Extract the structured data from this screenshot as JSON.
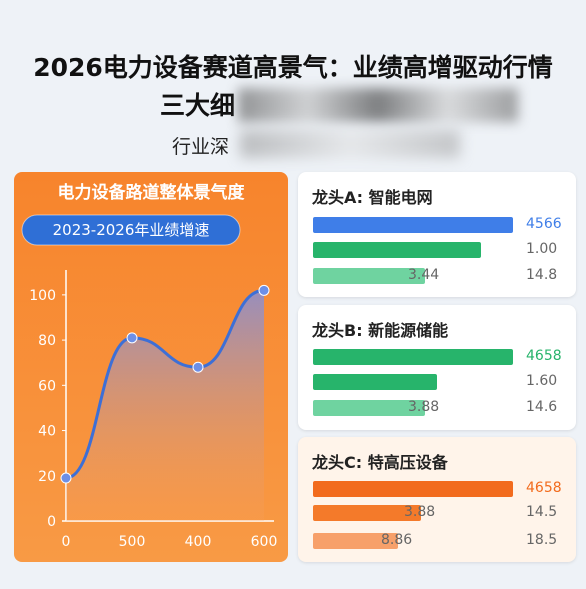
{
  "title": "2026电力设备赛道高景气：业绩高增驱动行情",
  "title_line2": "三大细",
  "subtitle": "行业深",
  "chart_data": {
    "type": "line",
    "title": "电力设备路道整体景气度",
    "subtitle": "2023-2026年业绩增速",
    "categories": [
      "0",
      "500",
      "400",
      "600"
    ],
    "values": [
      19,
      81,
      68,
      102
    ],
    "color": "#3d6fd6",
    "ylim": [
      0,
      111
    ],
    "yticks": [
      0,
      20,
      40,
      60,
      80,
      100
    ]
  },
  "cards": [
    {
      "title": "龙头A: 智能电网",
      "rows": [
        {
          "labels": [
            "4566"
          ]
        },
        {
          "labels": [
            "1.00"
          ]
        },
        {
          "labels": [
            "3.44",
            "14.8"
          ]
        }
      ]
    },
    {
      "title": "龙头B: 新能源储能",
      "rows": [
        {
          "labels": [
            "4658"
          ]
        },
        {
          "labels": [
            "1.60"
          ]
        },
        {
          "labels": [
            "3.88",
            "14.6"
          ]
        }
      ]
    },
    {
      "title": "龙头C: 特高压设备",
      "rows": [
        {
          "labels": [
            "4658"
          ]
        },
        {
          "labels": [
            "3.88",
            "14.5"
          ]
        },
        {
          "labels": [
            "8.86",
            "18.5"
          ]
        }
      ]
    }
  ]
}
